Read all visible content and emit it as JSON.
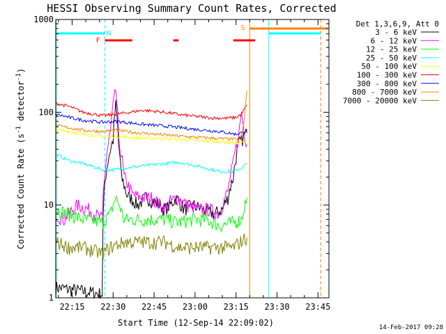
{
  "title": "HESSI Observing Summary Count Rates, Corrected",
  "footer_stamp": "14-Feb-2017 09:28",
  "chart_data": {
    "type": "line",
    "title": "HESSI Observing Summary Count Rates, Corrected",
    "xlabel": "Start Time (12-Sep-14 22:09:02)",
    "ylabel": "Corrected Count Rate (s⁻¹ detector⁻¹)",
    "ylabel_main": "Corrected Count Rate (s",
    "ylabel_sup1": "-1",
    "ylabel_mid": " detector",
    "ylabel_sup2": "-1",
    "ylabel_end": ")",
    "y_scale": "log",
    "ylim": [
      1,
      1000
    ],
    "xlim_minutes": [
      0,
      100
    ],
    "x_ticks": [
      {
        "label": "22:15",
        "min": 6
      },
      {
        "label": "22:30",
        "min": 21
      },
      {
        "label": "22:45",
        "min": 36
      },
      {
        "label": "23:00",
        "min": 51
      },
      {
        "label": "23:15",
        "min": 66
      },
      {
        "label": "23:30",
        "min": 81
      },
      {
        "label": "23:45",
        "min": 96
      }
    ],
    "y_ticks": [
      {
        "label": "1",
        "value": 1
      },
      {
        "label": "10",
        "value": 10
      },
      {
        "label": "100",
        "value": 100
      },
      {
        "label": "1000",
        "value": 1000
      }
    ],
    "legend_header": "Det 1,3,6,9, Att 0",
    "legend_placement": "right",
    "series": [
      {
        "name": "3 - 6 keV",
        "color": "#000000",
        "values": [
          [
            0,
            1.3
          ],
          [
            8,
            1.2
          ],
          [
            17,
            1.1
          ],
          [
            18,
            18
          ],
          [
            21,
            50
          ],
          [
            22,
            120
          ],
          [
            23,
            45
          ],
          [
            24,
            20
          ],
          [
            26,
            13
          ],
          [
            30,
            10
          ],
          [
            33,
            12
          ],
          [
            36,
            11
          ],
          [
            40,
            9
          ],
          [
            42,
            10
          ],
          [
            44,
            12
          ],
          [
            47,
            9
          ],
          [
            50,
            10
          ],
          [
            54,
            9
          ],
          [
            58,
            8
          ],
          [
            61,
            9
          ],
          [
            63,
            12
          ],
          [
            65,
            20
          ],
          [
            67,
            45
          ],
          [
            70,
            60
          ]
        ]
      },
      {
        "name": "6 - 12 keV",
        "color": "#ff00ff",
        "values": [
          [
            0,
            8
          ],
          [
            3,
            7
          ],
          [
            8,
            10
          ],
          [
            12,
            9
          ],
          [
            17,
            7
          ],
          [
            18,
            22
          ],
          [
            20,
            60
          ],
          [
            22,
            170
          ],
          [
            23,
            50
          ],
          [
            25,
            20
          ],
          [
            28,
            13
          ],
          [
            31,
            12
          ],
          [
            35,
            12
          ],
          [
            40,
            9
          ],
          [
            42,
            11
          ],
          [
            45,
            12
          ],
          [
            48,
            10
          ],
          [
            52,
            9
          ],
          [
            56,
            9
          ],
          [
            60,
            8
          ],
          [
            63,
            14
          ],
          [
            65,
            28
          ],
          [
            67,
            55
          ],
          [
            68,
            100
          ],
          [
            69,
            60
          ],
          [
            70,
            45
          ]
        ]
      },
      {
        "name": "12 - 25 keV",
        "color": "#00ff00",
        "values": [
          [
            0,
            9
          ],
          [
            5,
            8
          ],
          [
            10,
            7
          ],
          [
            17,
            6.5
          ],
          [
            20,
            8
          ],
          [
            22,
            12
          ],
          [
            25,
            7
          ],
          [
            30,
            7
          ],
          [
            35,
            7
          ],
          [
            40,
            7
          ],
          [
            45,
            6.5
          ],
          [
            50,
            7
          ],
          [
            55,
            7
          ],
          [
            60,
            6
          ],
          [
            65,
            6.5
          ],
          [
            68,
            7
          ],
          [
            70,
            12
          ]
        ]
      },
      {
        "name": "25 - 50 keV",
        "color": "#00ffff",
        "values": [
          [
            0,
            35
          ],
          [
            5,
            30
          ],
          [
            10,
            28
          ],
          [
            17,
            24
          ],
          [
            21,
            24
          ],
          [
            25,
            25
          ],
          [
            30,
            26
          ],
          [
            35,
            27
          ],
          [
            40,
            28
          ],
          [
            45,
            29
          ],
          [
            50,
            27
          ],
          [
            55,
            25
          ],
          [
            60,
            23
          ],
          [
            65,
            23
          ],
          [
            68,
            25
          ],
          [
            70,
            28
          ]
        ]
      },
      {
        "name": "50 - 100 keV",
        "color": "#ffff00",
        "values": [
          [
            0,
            65
          ],
          [
            5,
            62
          ],
          [
            10,
            58
          ],
          [
            17,
            55
          ],
          [
            22,
            55
          ],
          [
            30,
            53
          ],
          [
            40,
            52
          ],
          [
            50,
            50
          ],
          [
            60,
            48
          ],
          [
            65,
            47
          ],
          [
            70,
            47
          ]
        ]
      },
      {
        "name": "100 - 300 keV",
        "color": "#ff0000",
        "values": [
          [
            0,
            125
          ],
          [
            5,
            115
          ],
          [
            10,
            100
          ],
          [
            17,
            92
          ],
          [
            22,
            95
          ],
          [
            27,
            100
          ],
          [
            32,
            105
          ],
          [
            37,
            102
          ],
          [
            42,
            98
          ],
          [
            47,
            93
          ],
          [
            52,
            90
          ],
          [
            57,
            87
          ],
          [
            62,
            86
          ],
          [
            66,
            88
          ],
          [
            68,
            95
          ],
          [
            70,
            120
          ]
        ]
      },
      {
        "name": "300 - 800 keV",
        "color": "#0000ff",
        "values": [
          [
            0,
            95
          ],
          [
            5,
            88
          ],
          [
            10,
            82
          ],
          [
            17,
            78
          ],
          [
            22,
            80
          ],
          [
            27,
            77
          ],
          [
            32,
            74
          ],
          [
            40,
            71
          ],
          [
            50,
            66
          ],
          [
            60,
            62
          ],
          [
            66,
            58
          ],
          [
            68,
            60
          ],
          [
            70,
            65
          ]
        ]
      },
      {
        "name": "800 - 7000 keV",
        "color": "#ff8000",
        "values": [
          [
            0,
            72
          ],
          [
            5,
            68
          ],
          [
            10,
            64
          ],
          [
            17,
            62
          ],
          [
            22,
            64
          ],
          [
            30,
            60
          ],
          [
            40,
            57
          ],
          [
            50,
            54
          ],
          [
            60,
            52
          ],
          [
            66,
            51
          ],
          [
            68,
            55
          ],
          [
            69,
            80
          ],
          [
            70,
            170
          ]
        ]
      },
      {
        "name": "7000 - 20000 keV",
        "color": "#808000",
        "values": [
          [
            0,
            4
          ],
          [
            5,
            3.5
          ],
          [
            10,
            3.5
          ],
          [
            17,
            3
          ],
          [
            20,
            3.5
          ],
          [
            25,
            4
          ],
          [
            30,
            4
          ],
          [
            35,
            4
          ],
          [
            40,
            4
          ],
          [
            45,
            3.5
          ],
          [
            50,
            3.5
          ],
          [
            55,
            3.5
          ],
          [
            60,
            3.5
          ],
          [
            65,
            3.5
          ],
          [
            70,
            4.5
          ]
        ]
      }
    ],
    "annotations": {
      "flags": [
        {
          "label": "N",
          "color": "#00ffff"
        },
        {
          "label": "F",
          "color": "#ff0000"
        },
        {
          "label": "S",
          "color": "#ff8000"
        }
      ]
    }
  }
}
